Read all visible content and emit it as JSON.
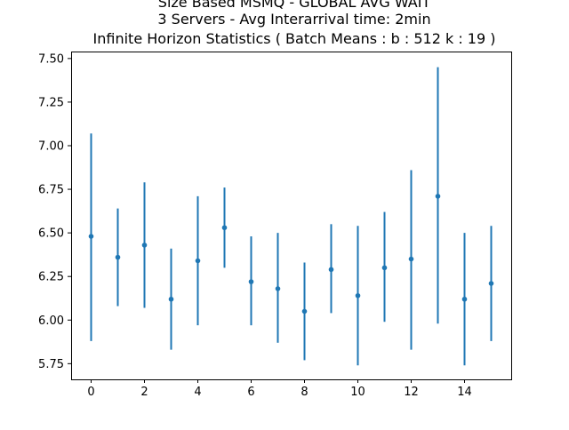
{
  "chart_data": {
    "type": "errorbar",
    "title_lines": [
      "Size Based MSMQ - GLOBAL AVG WAIT",
      "3 Servers -  Avg Interarrival time: 2min",
      "Infinite Horizon Statistics ( Batch Means : b : 512  k : 19 )"
    ],
    "xlabel": "",
    "ylabel": "",
    "xlim": [
      -0.75,
      15.75
    ],
    "ylim": [
      5.66,
      7.54
    ],
    "x_ticks": [
      0,
      2,
      4,
      6,
      8,
      10,
      12,
      14
    ],
    "x_tick_labels": [
      "0",
      "2",
      "4",
      "6",
      "8",
      "10",
      "12",
      "14"
    ],
    "y_ticks": [
      5.75,
      6.0,
      6.25,
      6.5,
      6.75,
      7.0,
      7.25,
      7.5
    ],
    "y_tick_labels": [
      "5.75",
      "6.00",
      "6.25",
      "6.50",
      "6.75",
      "7.00",
      "7.25",
      "7.50"
    ],
    "grid": false,
    "series": [
      {
        "color": "#1f77b4",
        "points": [
          {
            "x": 0,
            "y": 6.48,
            "low": 5.88,
            "high": 7.07
          },
          {
            "x": 1,
            "y": 6.36,
            "low": 6.08,
            "high": 6.64
          },
          {
            "x": 2,
            "y": 6.43,
            "low": 6.07,
            "high": 6.79
          },
          {
            "x": 3,
            "y": 6.12,
            "low": 5.83,
            "high": 6.41
          },
          {
            "x": 4,
            "y": 6.34,
            "low": 5.97,
            "high": 6.71
          },
          {
            "x": 5,
            "y": 6.53,
            "low": 6.3,
            "high": 6.76
          },
          {
            "x": 6,
            "y": 6.22,
            "low": 5.97,
            "high": 6.48
          },
          {
            "x": 7,
            "y": 6.18,
            "low": 5.87,
            "high": 6.5
          },
          {
            "x": 8,
            "y": 6.05,
            "low": 5.77,
            "high": 6.33
          },
          {
            "x": 9,
            "y": 6.29,
            "low": 6.04,
            "high": 6.55
          },
          {
            "x": 10,
            "y": 6.14,
            "low": 5.74,
            "high": 6.54
          },
          {
            "x": 11,
            "y": 6.3,
            "low": 5.99,
            "high": 6.62
          },
          {
            "x": 12,
            "y": 6.35,
            "low": 5.83,
            "high": 6.86
          },
          {
            "x": 13,
            "y": 6.71,
            "low": 5.98,
            "high": 7.45
          },
          {
            "x": 14,
            "y": 6.12,
            "low": 5.74,
            "high": 6.5
          },
          {
            "x": 15,
            "y": 6.21,
            "low": 5.88,
            "high": 6.54
          }
        ]
      }
    ]
  }
}
